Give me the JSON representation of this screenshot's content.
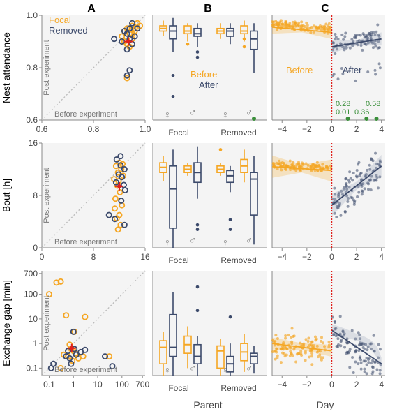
{
  "colors": {
    "focal": "#F5A623",
    "removed": "#3C4A6B",
    "green": "#3A8F3A",
    "red": "#E0201B",
    "dotted_line": "#BBBBBB",
    "panel_bg": "#F4F4F4",
    "axis": "#888888",
    "text": "#333333"
  },
  "column_titles": [
    "A",
    "B",
    "C"
  ],
  "row_labels": [
    "Nest attendance",
    "Bout [h]",
    "Exchange gap [min]"
  ],
  "column_xlabels": [
    "",
    "Parent",
    "Day"
  ],
  "inline_labels": {
    "post_experiment": "Post experiment",
    "before_experiment": "Before experiment",
    "focal": "Focal",
    "removed": "Removed",
    "before": "Before",
    "after": "After",
    "female_symbol": "♀",
    "male_symbol": "♂"
  },
  "icons": {
    "female": "female-symbol-icon",
    "male": "male-symbol-icon"
  },
  "chart_data": [
    {
      "panel": "A-top",
      "type": "scatter",
      "ylabel": "Nest attendance",
      "xlim": [
        0.6,
        1.0
      ],
      "ylim": [
        0.6,
        1.0
      ],
      "xticks": [
        "0.6",
        "0.8",
        "1.0"
      ],
      "yticks": [
        "0.6",
        "0.8",
        "1.0"
      ],
      "legend": [
        "Focal",
        "Removed"
      ],
      "legend_position": "top-left",
      "series": [
        {
          "name": "Focal",
          "points": [
            [
              0.93,
              0.95
            ],
            [
              0.95,
              0.96
            ],
            [
              0.97,
              0.97
            ],
            [
              0.92,
              0.94
            ],
            [
              0.94,
              0.93
            ],
            [
              0.96,
              0.95
            ],
            [
              0.91,
              0.92
            ],
            [
              0.95,
              0.91
            ],
            [
              0.93,
              0.89
            ],
            [
              0.94,
              0.88
            ],
            [
              0.92,
              0.9
            ],
            [
              0.96,
              0.94
            ],
            [
              0.98,
              0.96
            ],
            [
              0.93,
              0.76
            ],
            [
              0.95,
              0.93
            ]
          ]
        },
        {
          "name": "Removed",
          "points": [
            [
              0.88,
              0.91
            ],
            [
              0.92,
              0.94
            ],
            [
              0.94,
              0.95
            ],
            [
              0.95,
              0.97
            ],
            [
              0.93,
              0.93
            ],
            [
              0.91,
              0.9
            ],
            [
              0.96,
              0.92
            ],
            [
              0.94,
              0.91
            ],
            [
              0.93,
              0.87
            ],
            [
              0.95,
              0.89
            ],
            [
              0.94,
              0.79
            ],
            [
              0.93,
              0.77
            ],
            [
              0.97,
              0.95
            ]
          ]
        }
      ],
      "mean_marker": [
        0.935,
        0.9
      ]
    },
    {
      "panel": "A-mid",
      "type": "scatter",
      "ylabel": "Bout [h]",
      "xlim": [
        0,
        16
      ],
      "ylim": [
        0,
        16
      ],
      "xticks": [
        "0",
        "8",
        "16"
      ],
      "yticks": [
        "0",
        "8",
        "16"
      ],
      "series": [
        {
          "name": "Focal",
          "points": [
            [
              11.5,
              12.5
            ],
            [
              12,
              13
            ],
            [
              11.8,
              11.5
            ],
            [
              12.3,
              12
            ],
            [
              11.2,
              10.5
            ],
            [
              12.6,
              11
            ],
            [
              11.7,
              9.5
            ],
            [
              12.1,
              8.5
            ],
            [
              11.4,
              7.5
            ],
            [
              12.4,
              6.5
            ],
            [
              11.3,
              6
            ],
            [
              12,
              5
            ],
            [
              11.6,
              4.5
            ],
            [
              12.2,
              3.5
            ],
            [
              11.8,
              2.8
            ],
            [
              12.5,
              12.8
            ],
            [
              11.9,
              10.2
            ]
          ]
        },
        {
          "name": "Removed",
          "points": [
            [
              11.6,
              13.5
            ],
            [
              12.2,
              12.6
            ],
            [
              12.8,
              12
            ],
            [
              11.9,
              11.2
            ],
            [
              12.4,
              10.8
            ],
            [
              12.7,
              9.6
            ],
            [
              11.5,
              10
            ],
            [
              12.9,
              8.8
            ],
            [
              12.3,
              7.2
            ],
            [
              10.4,
              5
            ],
            [
              11.3,
              4.4
            ],
            [
              12.8,
              3.5
            ],
            [
              12.2,
              14
            ]
          ]
        }
      ],
      "mean_marker": [
        12,
        9.4
      ]
    },
    {
      "panel": "A-bottom",
      "type": "scatter",
      "ylabel": "Exchange gap [min]",
      "xscale": "log",
      "yscale": "log",
      "xticks": [
        "0.1",
        "1",
        "10",
        "100",
        "700"
      ],
      "yticks": [
        "0.1",
        "1",
        "10",
        "100",
        "700"
      ],
      "series": [
        {
          "name": "Focal",
          "points": [
            [
              0.2,
              300
            ],
            [
              0.3,
              330
            ],
            [
              0.1,
              100
            ],
            [
              0.5,
              14
            ],
            [
              0.7,
              0.9
            ],
            [
              0.8,
              0.6
            ],
            [
              1,
              0.5
            ],
            [
              0.6,
              0.3
            ],
            [
              1.2,
              0.4
            ],
            [
              3,
              12
            ],
            [
              0.9,
              0.2
            ],
            [
              1.6,
              0.25
            ],
            [
              0.4,
              0.35
            ],
            [
              2.5,
              0.3
            ],
            [
              30,
              0.3
            ],
            [
              1.1,
              3
            ],
            [
              0.3,
              0.1
            ]
          ]
        },
        {
          "name": "Removed",
          "points": [
            [
              0.12,
              0.1
            ],
            [
              0.15,
              0.15
            ],
            [
              0.5,
              0.3
            ],
            [
              0.7,
              0.25
            ],
            [
              1,
              3
            ],
            [
              1.3,
              0.35
            ],
            [
              1.1,
              0.6
            ],
            [
              0.8,
              0.15
            ],
            [
              2,
              0.45
            ],
            [
              3,
              0.55
            ],
            [
              20,
              0.3
            ],
            [
              40,
              0.12
            ],
            [
              0.6,
              0.5
            ]
          ]
        }
      ],
      "mean_marker": [
        0.85,
        0.65
      ]
    },
    {
      "panel": "B-top",
      "type": "box",
      "ylim": [
        0.6,
        1.0
      ],
      "categories": [
        "Focal",
        "Removed"
      ],
      "series_legend": [
        "Before",
        "After"
      ],
      "boxes": [
        {
          "group": "Focal",
          "sex": "female",
          "series": "Before",
          "q1": 0.94,
          "median": 0.95,
          "q3": 0.96,
          "lo": 0.92,
          "hi": 0.98,
          "outliers": []
        },
        {
          "group": "Focal",
          "sex": "female",
          "series": "After",
          "q1": 0.91,
          "median": 0.94,
          "q3": 0.96,
          "lo": 0.86,
          "hi": 0.99,
          "outliers": [
            0.77,
            0.69
          ]
        },
        {
          "group": "Focal",
          "sex": "male",
          "series": "Before",
          "q1": 0.93,
          "median": 0.94,
          "q3": 0.96,
          "lo": 0.9,
          "hi": 0.97,
          "outliers": [
            0.89
          ]
        },
        {
          "group": "Focal",
          "sex": "male",
          "series": "After",
          "q1": 0.92,
          "median": 0.93,
          "q3": 0.95,
          "lo": 0.88,
          "hi": 0.97,
          "outliers": [
            0.86,
            0.84
          ]
        },
        {
          "group": "Removed",
          "sex": "female",
          "series": "Before",
          "q1": 0.93,
          "median": 0.94,
          "q3": 0.95,
          "lo": 0.91,
          "hi": 0.97,
          "outliers": []
        },
        {
          "group": "Removed",
          "sex": "female",
          "series": "After",
          "q1": 0.92,
          "median": 0.94,
          "q3": 0.95,
          "lo": 0.89,
          "hi": 0.97,
          "outliers": []
        },
        {
          "group": "Removed",
          "sex": "male",
          "series": "Before",
          "q1": 0.93,
          "median": 0.94,
          "q3": 0.96,
          "lo": 0.9,
          "hi": 0.98,
          "outliers": [
            0.91,
            0.88
          ]
        },
        {
          "group": "Removed",
          "sex": "male",
          "series": "After",
          "q1": 0.87,
          "median": 0.91,
          "q3": 0.94,
          "lo": 0.78,
          "hi": 0.97,
          "outliers": []
        }
      ],
      "extra_points": [
        {
          "group": "Removed",
          "sex": "male",
          "value": 0.6,
          "color": "green"
        }
      ]
    },
    {
      "panel": "B-mid",
      "type": "box",
      "ylim": [
        0,
        16
      ],
      "categories": [
        "Focal",
        "Removed"
      ],
      "boxes": [
        {
          "group": "Focal",
          "sex": "female",
          "series": "Before",
          "q1": 11.5,
          "median": 12.3,
          "q3": 13,
          "lo": 10.2,
          "hi": 14,
          "outliers": []
        },
        {
          "group": "Focal",
          "sex": "female",
          "series": "After",
          "q1": 3,
          "median": 9,
          "q3": 12.5,
          "lo": 0,
          "hi": 15,
          "outliers": []
        },
        {
          "group": "Focal",
          "sex": "male",
          "series": "Before",
          "q1": 11.5,
          "median": 12,
          "q3": 12.5,
          "lo": 11,
          "hi": 13,
          "outliers": []
        },
        {
          "group": "Focal",
          "sex": "male",
          "series": "After",
          "q1": 10,
          "median": 11.5,
          "q3": 13,
          "lo": 7.5,
          "hi": 15.5,
          "outliers": [
            3.5,
            2.8
          ]
        },
        {
          "group": "Removed",
          "sex": "female",
          "series": "Before",
          "q1": 11.5,
          "median": 12,
          "q3": 12.5,
          "lo": 11,
          "hi": 13,
          "outliers": [
            15
          ]
        },
        {
          "group": "Removed",
          "sex": "female",
          "series": "After",
          "q1": 10,
          "median": 11,
          "q3": 11.8,
          "lo": 8.5,
          "hi": 12.5,
          "outliers": [
            4.3,
            2.8
          ]
        },
        {
          "group": "Removed",
          "sex": "male",
          "series": "Before",
          "q1": 11.5,
          "median": 12.5,
          "q3": 13.5,
          "lo": 10,
          "hi": 15,
          "outliers": []
        },
        {
          "group": "Removed",
          "sex": "male",
          "series": "After",
          "q1": 5,
          "median": 10.5,
          "q3": 11.5,
          "lo": 0.5,
          "hi": 14,
          "outliers": []
        }
      ]
    },
    {
      "panel": "B-bottom",
      "type": "box",
      "yscale": "log",
      "categories": [
        "Focal",
        "Removed"
      ],
      "boxes": [
        {
          "group": "Focal",
          "sex": "female",
          "series": "Before",
          "q1": 0.15,
          "median": 0.7,
          "q3": 1.3,
          "lo": 0.05,
          "hi": 3,
          "outliers": []
        },
        {
          "group": "Focal",
          "sex": "female",
          "series": "After",
          "q1": 0.3,
          "median": 0.7,
          "q3": 15,
          "lo": 0.05,
          "hi": 120,
          "outliers": []
        },
        {
          "group": "Focal",
          "sex": "male",
          "series": "Before",
          "q1": 0.4,
          "median": 0.9,
          "q3": 2,
          "lo": 0.1,
          "hi": 5,
          "outliers": []
        },
        {
          "group": "Focal",
          "sex": "male",
          "series": "After",
          "q1": 0.15,
          "median": 0.3,
          "q3": 0.9,
          "lo": 0.05,
          "hi": 2,
          "outliers": [
            22,
            200
          ]
        },
        {
          "group": "Removed",
          "sex": "female",
          "series": "Before",
          "q1": 0.1,
          "median": 0.5,
          "q3": 0.8,
          "lo": 0.05,
          "hi": 1.5,
          "outliers": []
        },
        {
          "group": "Removed",
          "sex": "female",
          "series": "After",
          "q1": 0.07,
          "median": 0.15,
          "q3": 0.3,
          "lo": 0.05,
          "hi": 1,
          "outliers": [
            12
          ]
        },
        {
          "group": "Removed",
          "sex": "male",
          "series": "Before",
          "q1": 0.2,
          "median": 0.45,
          "q3": 1,
          "lo": 0.07,
          "hi": 2.5,
          "outliers": []
        },
        {
          "group": "Removed",
          "sex": "male",
          "series": "After",
          "q1": 0.15,
          "median": 0.3,
          "q3": 0.4,
          "lo": 0.06,
          "hi": 0.8,
          "outliers": []
        }
      ]
    },
    {
      "panel": "C-top",
      "type": "scatter",
      "xlim": [
        -4.8,
        4.3
      ],
      "ylim": [
        0.6,
        1.0
      ],
      "xticks": [
        "-4",
        "-2",
        "0",
        "2",
        "4"
      ],
      "series_legend": [
        "Before",
        "After"
      ],
      "annotations": [
        "0.28",
        "0.01",
        "0.36",
        "0.58"
      ],
      "green_points": [
        [
          1.3,
          0.6
        ],
        [
          2.8,
          0.6
        ],
        [
          3.6,
          0.6
        ]
      ],
      "trend_before": [
        [
          -4.8,
          0.955
        ],
        [
          0,
          0.935
        ]
      ],
      "trend_after": [
        [
          0,
          0.88
        ],
        [
          4,
          0.91
        ]
      ]
    },
    {
      "panel": "C-mid",
      "type": "scatter",
      "xlim": [
        -4.8,
        4.3
      ],
      "ylim": [
        0,
        16
      ],
      "xticks": [
        "-4",
        "-2",
        "0",
        "2",
        "4"
      ],
      "trend_before": [
        [
          -4.8,
          12.4
        ],
        [
          0,
          11.8
        ]
      ],
      "trend_after": [
        [
          0,
          6.5
        ],
        [
          4,
          12.5
        ]
      ]
    },
    {
      "panel": "C-bottom",
      "type": "scatter",
      "xlim": [
        -4.8,
        4.3
      ],
      "yscale": "log",
      "xticks": [
        "-4",
        "-2",
        "0",
        "2",
        "4"
      ],
      "trend_before": [
        [
          -4.8,
          1.0
        ],
        [
          0,
          0.5
        ]
      ],
      "trend_after": [
        [
          0,
          3.5
        ],
        [
          4,
          0.15
        ]
      ]
    }
  ]
}
